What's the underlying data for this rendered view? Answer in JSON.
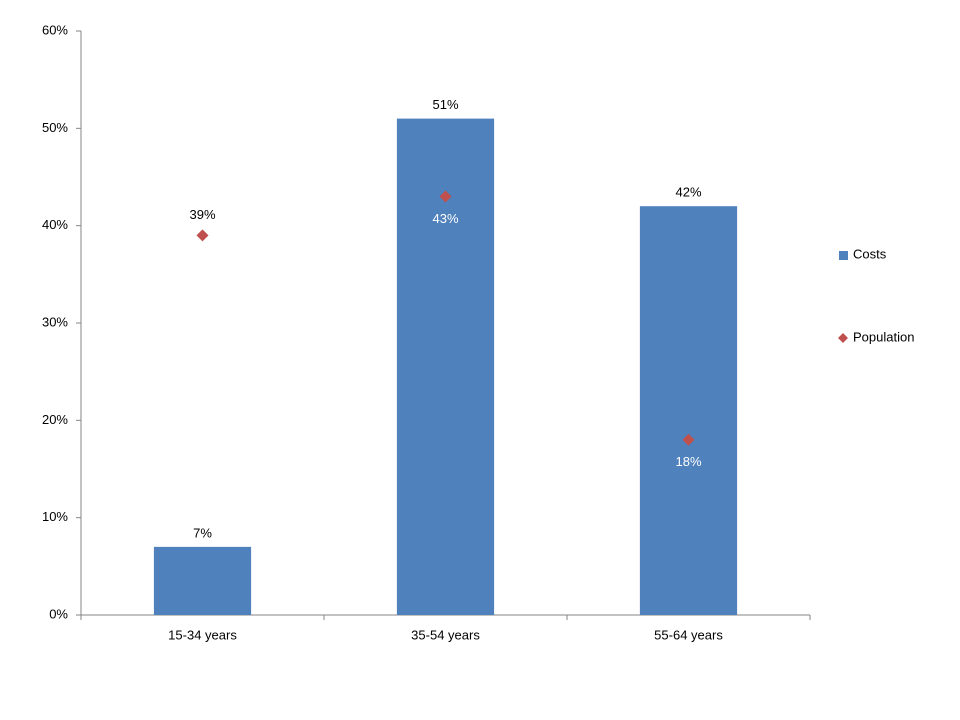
{
  "chart_data": {
    "type": "bar",
    "categories": [
      "15-34 years",
      "35-54 years",
      "55-64 years"
    ],
    "series": [
      {
        "name": "Costs",
        "type": "bar",
        "color": "#4f81bd",
        "values": [
          7,
          51,
          42
        ],
        "value_labels": [
          "7%",
          "51%",
          "42%"
        ]
      },
      {
        "name": "Population",
        "type": "scatter",
        "marker": "diamond",
        "color": "#c0504d",
        "values": [
          39,
          43,
          18
        ],
        "value_labels": [
          "39%",
          "43%",
          "18%"
        ]
      }
    ],
    "ylim": [
      0,
      60
    ],
    "yticks": [
      {
        "value": 0,
        "label": "0%"
      },
      {
        "value": 10,
        "label": "10%"
      },
      {
        "value": 20,
        "label": "20%"
      },
      {
        "value": 30,
        "label": "30%"
      },
      {
        "value": 40,
        "label": "40%"
      },
      {
        "value": 50,
        "label": "50%"
      },
      {
        "value": 60,
        "label": "60%"
      }
    ],
    "grid": false,
    "legend": "right"
  }
}
